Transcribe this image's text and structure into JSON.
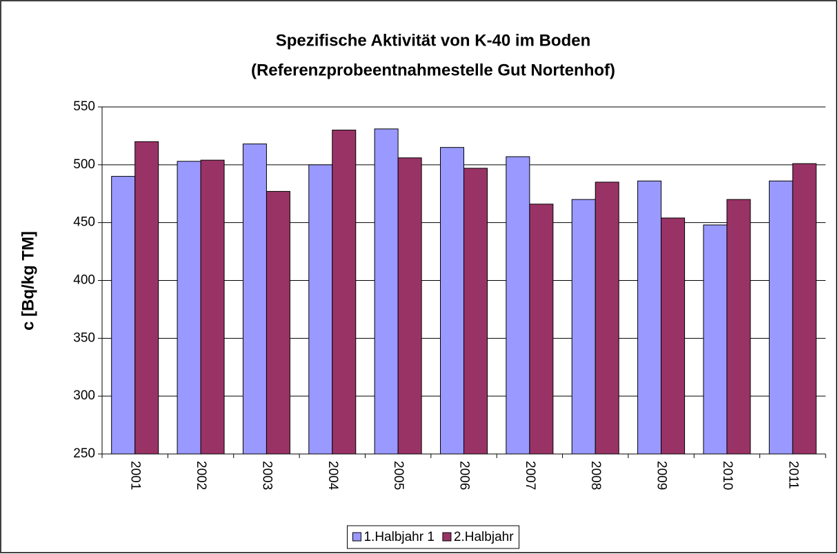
{
  "chart_data": {
    "type": "bar",
    "title": [
      "Spezifische Aktivität von K-40 im Boden",
      "(Referenzprobeentnahmestelle Gut Nortenhof)"
    ],
    "y_label": "c [Bq/kg TM]",
    "categories": [
      "2001",
      "2002",
      "2003",
      "2004",
      "2005",
      "2006",
      "2007",
      "2008",
      "2009",
      "2010",
      "2011"
    ],
    "series": [
      {
        "name": "1.Halbjahr 1",
        "color": "#9999ff",
        "values": [
          490,
          503,
          518,
          500,
          531,
          515,
          507,
          470,
          486,
          448,
          486
        ]
      },
      {
        "name": "2.Halbjahr",
        "color": "#993366",
        "values": [
          520,
          504,
          477,
          530,
          506,
          497,
          466,
          485,
          454,
          470,
          501
        ]
      }
    ],
    "ylim": [
      250,
      550
    ],
    "yticks": [
      250,
      300,
      350,
      400,
      450,
      500,
      550
    ],
    "grid": true,
    "legend": "bottom"
  }
}
